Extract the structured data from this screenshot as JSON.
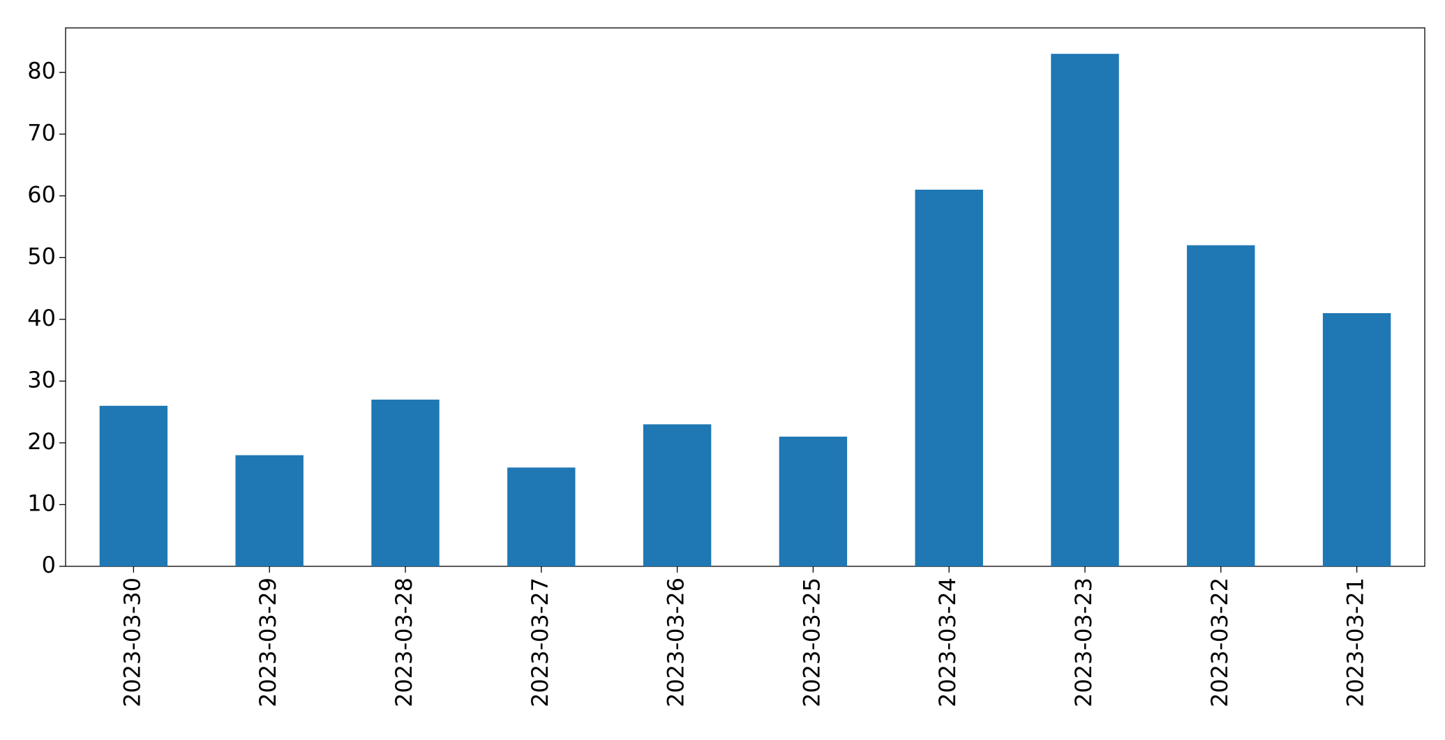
{
  "chart_data": {
    "type": "bar",
    "categories": [
      "2023-03-30",
      "2023-03-29",
      "2023-03-28",
      "2023-03-27",
      "2023-03-26",
      "2023-03-25",
      "2023-03-24",
      "2023-03-23",
      "2023-03-22",
      "2023-03-21"
    ],
    "values": [
      26,
      18,
      27,
      16,
      23,
      21,
      61,
      83,
      52,
      41
    ],
    "color": "#1f77b4",
    "ylim": [
      0,
      87.2
    ],
    "yticks": [
      0,
      10,
      20,
      30,
      40,
      50,
      60,
      70,
      80
    ],
    "grid": false
  }
}
